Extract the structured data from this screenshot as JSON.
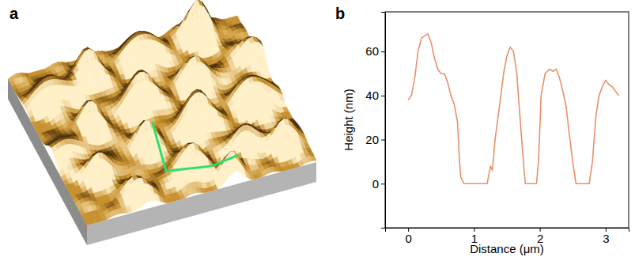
{
  "image_panel": {
    "label": "a"
  },
  "chart_data": {
    "type": "line",
    "panel_label": "b",
    "x_label": "Distance (μm)",
    "y_label": "Height (nm)",
    "x": [
      0,
      0.05,
      0.1,
      0.15,
      0.2,
      0.25,
      0.3,
      0.35,
      0.4,
      0.45,
      0.5,
      0.55,
      0.6,
      0.65,
      0.7,
      0.75,
      0.78,
      0.8,
      0.85,
      1.0,
      1.2,
      1.25,
      1.28,
      1.32,
      1.4,
      1.45,
      1.5,
      1.55,
      1.6,
      1.65,
      1.7,
      1.75,
      1.78,
      1.95,
      1.98,
      2.02,
      2.08,
      2.15,
      2.2,
      2.25,
      2.3,
      2.35,
      2.4,
      2.45,
      2.5,
      2.55,
      2.75,
      2.8,
      2.85,
      2.9,
      2.95,
      3.0,
      3.05,
      3.1,
      3.15,
      3.2
    ],
    "values": [
      38,
      40,
      48,
      60,
      66,
      67,
      68,
      64,
      57,
      52,
      50,
      50,
      46,
      40,
      36,
      28,
      10,
      3,
      0,
      0,
      0,
      8,
      6,
      20,
      38,
      50,
      58,
      62,
      60,
      50,
      30,
      10,
      0,
      0,
      10,
      40,
      50,
      52,
      51,
      52,
      48,
      42,
      35,
      22,
      10,
      0,
      0,
      10,
      30,
      40,
      44,
      47,
      45,
      44,
      42,
      40
    ],
    "color": "#e8916a",
    "xlim": [
      -0.35,
      3.35
    ],
    "xticks": [
      0,
      1,
      2,
      3
    ],
    "ylim": [
      -20,
      78
    ],
    "yticks": [
      0,
      20,
      40,
      60
    ],
    "grid": false
  }
}
